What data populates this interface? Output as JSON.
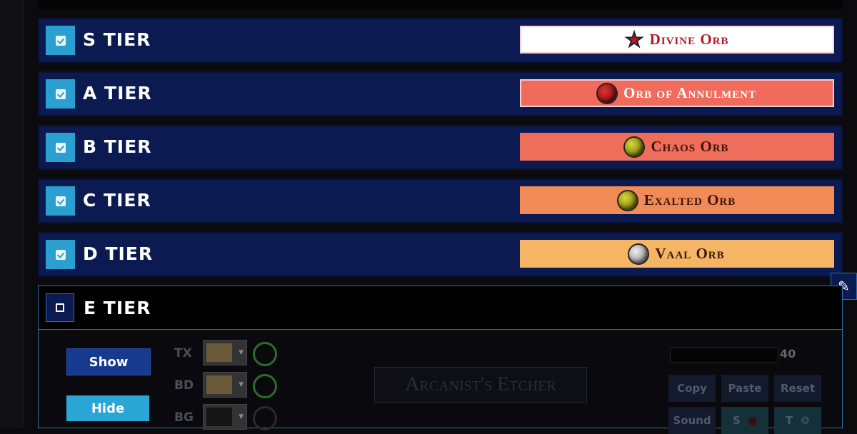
{
  "tiers": [
    {
      "label": "S TIER",
      "checked": true,
      "item": "Divine Orb",
      "bg": "#ffffff",
      "fg": "#b3172a",
      "icon": "star-icon"
    },
    {
      "label": "A TIER",
      "checked": true,
      "item": "Orb of Annulment",
      "bg": "#f06b5c",
      "fg": "#ffffff",
      "icon": "red-orb-icon"
    },
    {
      "label": "B TIER",
      "checked": true,
      "item": "Chaos Orb",
      "bg": "#ef6d5b",
      "fg": "#3b1608",
      "icon": "yellow-orb-icon"
    },
    {
      "label": "C TIER",
      "checked": true,
      "item": "Exalted Orb",
      "bg": "#f08b58",
      "fg": "#3b1608",
      "icon": "yellow-orb-icon"
    },
    {
      "label": "D TIER",
      "checked": true,
      "item": "Vaal Orb",
      "bg": "#f5b564",
      "fg": "#3b1608",
      "icon": "silver-orb-icon"
    }
  ],
  "expanded": {
    "label": "E TIER",
    "checked": false,
    "show": "Show",
    "hide": "Hide",
    "color_rows": [
      "TX",
      "BD",
      "BG"
    ],
    "preview_text": "Arcanist's Etcher",
    "font_size": "40",
    "copy": "Copy",
    "paste": "Paste",
    "reset": "Reset",
    "sound": "Sound",
    "s": "S",
    "t": "T"
  }
}
